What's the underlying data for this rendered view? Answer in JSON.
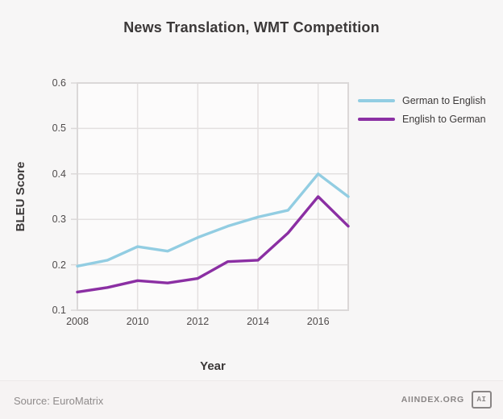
{
  "page": {
    "title": "News Translation, WMT Competition"
  },
  "chart_data": {
    "type": "line",
    "title": "News Translation, WMT Competition",
    "xlabel": "Year",
    "ylabel": "BLEU Score",
    "x": [
      2008,
      2009,
      2010,
      2011,
      2012,
      2013,
      2014,
      2015,
      2016,
      2017
    ],
    "series": [
      {
        "name": "German to English",
        "color": "#92cde2",
        "values": [
          0.197,
          0.21,
          0.24,
          0.23,
          0.26,
          0.285,
          0.305,
          0.32,
          0.4,
          0.35
        ]
      },
      {
        "name": "English to German",
        "color": "#8b2fa3",
        "values": [
          0.14,
          0.15,
          0.165,
          0.16,
          0.17,
          0.207,
          0.21,
          0.27,
          0.35,
          0.285
        ]
      }
    ],
    "xlim": [
      2008,
      2017
    ],
    "ylim": [
      0.1,
      0.6
    ],
    "x_ticks": [
      "2008",
      "2010",
      "2012",
      "2014",
      "2016"
    ],
    "y_ticks": [
      "0.6",
      "0.5",
      "0.4",
      "0.3",
      "0.2",
      "0.1"
    ],
    "grid": true,
    "legend_position": "right-outside-top"
  },
  "footer": {
    "source": "Source: EuroMatrix",
    "brand": "AIINDEX.ORG",
    "logo_text": "AI"
  },
  "colors": {
    "background": "#f7f6f6",
    "plot_background": "#fcfbfb",
    "grid": "#e3e0e0",
    "axis_border": "#dbd8d8",
    "text_dark": "#3b3838",
    "text_tick": "#4f4b4b",
    "text_muted": "#8f8b8b"
  }
}
